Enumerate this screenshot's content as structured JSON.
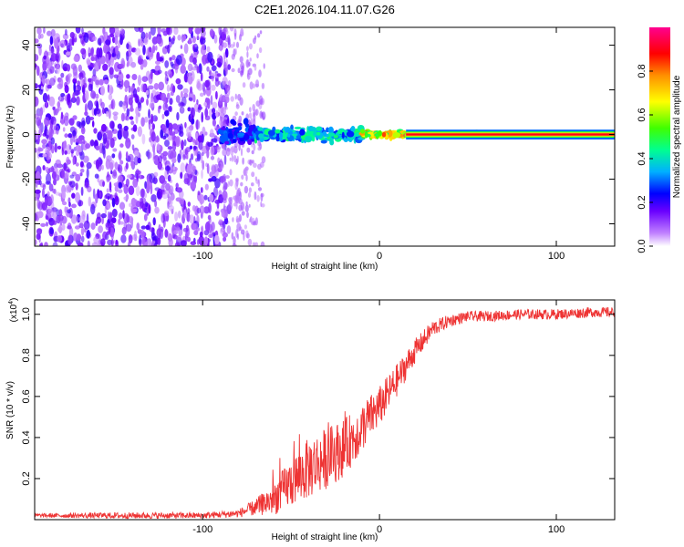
{
  "figure_title": "C2E1.2026.104.11.07.G26",
  "chart_data": [
    {
      "type": "heatmap",
      "panel": "top",
      "title": "C2E1.2026.104.11.07.G26",
      "xlabel": "Height of straight line (km)",
      "ylabel": "Frequency (Hz)",
      "xlim": [
        -195,
        133
      ],
      "ylim": [
        -50,
        48
      ],
      "x_ticks": [
        -100,
        0,
        100
      ],
      "x_tick_labels": [
        "-100",
        "0",
        "100"
      ],
      "y_ticks": [
        -40,
        -20,
        0,
        20,
        40
      ],
      "y_tick_labels": [
        "-40",
        "-20",
        "0",
        "20",
        "40"
      ],
      "colorbar": {
        "label": "Normalized spectral amplitude",
        "range": [
          0,
          1
        ],
        "ticks": [
          0.0,
          0.2,
          0.4,
          0.6,
          0.8
        ],
        "tick_labels": [
          "0.0",
          "0.2",
          "0.4",
          "0.6",
          "0.8"
        ],
        "colors": [
          "#ffffff",
          "#a040ff",
          "#0000ff",
          "#00c0ff",
          "#00ff80",
          "#40ff00",
          "#ffff00",
          "#ff8000",
          "#ff0000",
          "#ff0080"
        ]
      },
      "regions": [
        {
          "x_range": [
            -195,
            -90
          ],
          "description": "scattered weak noise across all frequencies",
          "amplitude": 0.15
        },
        {
          "x_range": [
            -90,
            -70
          ],
          "freq_center": 0,
          "freq_spread": 8,
          "amplitude": 0.3
        },
        {
          "x_range": [
            -70,
            -10
          ],
          "freq_center": 0,
          "freq_spread": 5,
          "amplitude": 0.45
        },
        {
          "x_range": [
            -10,
            15
          ],
          "freq_center": 0,
          "freq_spread": 2,
          "amplitude": 0.8
        },
        {
          "x_range": [
            15,
            133
          ],
          "freq_center": 0,
          "freq_spread": 1,
          "amplitude": 0.95
        }
      ]
    },
    {
      "type": "line",
      "panel": "bottom",
      "xlabel": "Height of straight line (km)",
      "ylabel": "SNR (10 * v/v)",
      "y_scale_label": "(x10",
      "y_scale_exponent": "4",
      "xlim": [
        -195,
        133
      ],
      "ylim": [
        0,
        1.07
      ],
      "x_ticks": [
        -100,
        0,
        100
      ],
      "x_tick_labels": [
        "-100",
        "0",
        "100"
      ],
      "y_ticks": [
        0.2,
        0.4,
        0.6,
        0.8,
        1.0
      ],
      "y_tick_labels": [
        "0.2",
        "0.4",
        "0.6",
        "0.8",
        "1.0"
      ],
      "line_color": "#ee3333",
      "x": [
        -195,
        -150,
        -100,
        -80,
        -70,
        -60,
        -50,
        -40,
        -30,
        -20,
        -10,
        0,
        10,
        20,
        30,
        40,
        50,
        60,
        80,
        100,
        120,
        133
      ],
      "y": [
        0.02,
        0.02,
        0.02,
        0.03,
        0.06,
        0.1,
        0.18,
        0.25,
        0.3,
        0.35,
        0.45,
        0.55,
        0.68,
        0.82,
        0.93,
        0.97,
        0.99,
        0.99,
        1.0,
        1.0,
        1.01,
        1.01
      ],
      "noise_amplitude": [
        0.01,
        0.015,
        0.015,
        0.02,
        0.04,
        0.08,
        0.12,
        0.15,
        0.15,
        0.14,
        0.12,
        0.1,
        0.08,
        0.06,
        0.04,
        0.03,
        0.025,
        0.025,
        0.025,
        0.025,
        0.025,
        0.025
      ]
    }
  ]
}
